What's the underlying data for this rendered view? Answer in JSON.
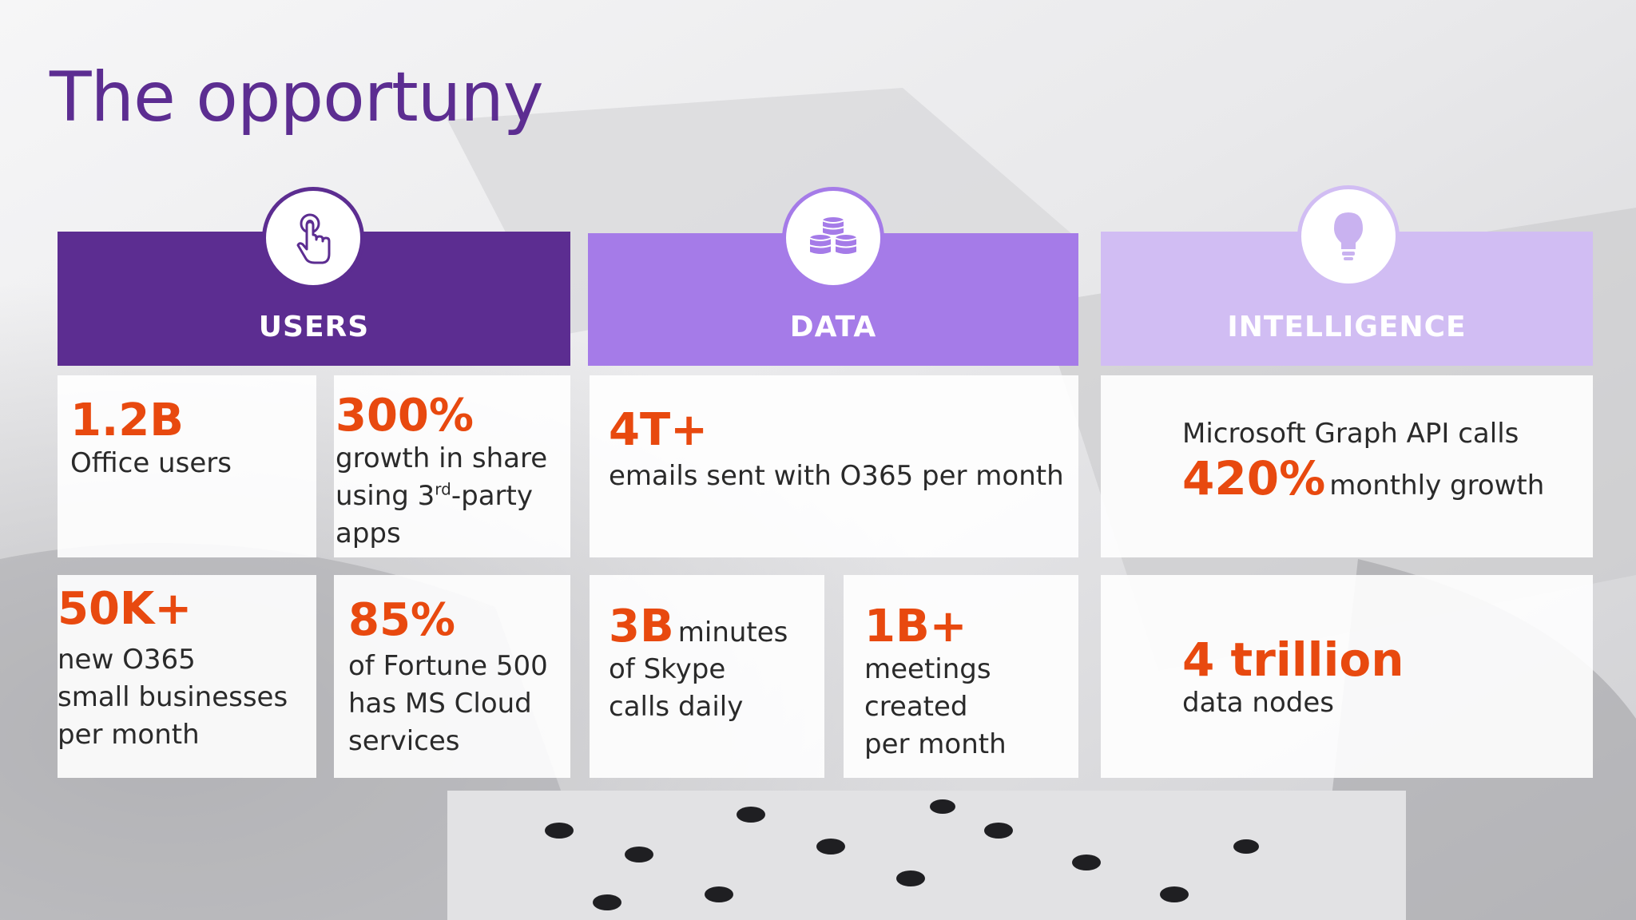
{
  "title": "The opportuny",
  "colors": {
    "title": "#5c2d91",
    "accent": "#e8490f",
    "users": "#5c2d91",
    "data": "#a57be8",
    "intelligence": "#d1bdf3"
  },
  "columns": [
    {
      "label": "USERS",
      "icon": "touch-hand-icon"
    },
    {
      "label": "DATA",
      "icon": "database-stack-icon"
    },
    {
      "label": "INTELLIGENCE",
      "icon": "lightbulb-icon"
    }
  ],
  "users": {
    "office": {
      "value": "1.2B",
      "text": "Office users"
    },
    "growth": {
      "value": "300%",
      "line1": "growth in share",
      "line2_pre": "using 3",
      "line2_sup": "rd",
      "line2_post": "-party",
      "line3": "apps"
    },
    "smb": {
      "value": "50K+",
      "line1": "new O365",
      "line2": "small businesses",
      "line3": "per month"
    },
    "fortune": {
      "value": "85%",
      "line1": "of Fortune 500",
      "line2": "has MS Cloud",
      "line3": "services"
    }
  },
  "data": {
    "emails": {
      "value": "4T+",
      "text": "emails sent with O365 per month"
    },
    "skype": {
      "value": "3B",
      "inline": "minutes",
      "line1": "of Skype",
      "line2": "calls daily"
    },
    "meetings": {
      "value": "1B+",
      "line1": "meetings",
      "line2": "created",
      "line3": "per month"
    }
  },
  "intelligence": {
    "graph": {
      "pre": "Microsoft Graph API calls",
      "value": "420%",
      "inline": "monthly growth"
    },
    "nodes": {
      "value": "4 trillion",
      "text": "data nodes"
    }
  }
}
